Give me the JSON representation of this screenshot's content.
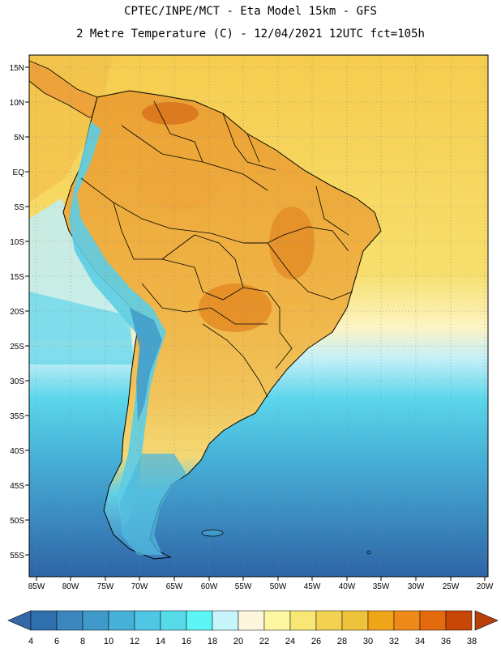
{
  "header": {
    "line1": "CPTEC/INPE/MCT  -   Eta Model 15km - GFS",
    "line2": "2 Metre Temperature (C) - 12/04/2021 12UTC fct=105h"
  },
  "axes": {
    "lat_labels": [
      "15N",
      "10N",
      "5N",
      "EQ",
      "5S",
      "10S",
      "15S",
      "20S",
      "25S",
      "30S",
      "35S",
      "40S",
      "45S",
      "50S",
      "55S"
    ],
    "lon_labels": [
      "85W",
      "80W",
      "75W",
      "70W",
      "65W",
      "60W",
      "55W",
      "50W",
      "45W",
      "40W",
      "35W",
      "30W",
      "25W",
      "20W"
    ]
  },
  "colorbar": {
    "labels": [
      "4",
      "6",
      "8",
      "10",
      "12",
      "14",
      "16",
      "18",
      "20",
      "22",
      "24",
      "26",
      "28",
      "30",
      "32",
      "34",
      "36",
      "38"
    ],
    "colors": [
      "#2f6fae",
      "#3a86bd",
      "#3f99c9",
      "#46b0d9",
      "#4fc6e3",
      "#56dbe9",
      "#5df5f5",
      "#c6f5fc",
      "#fdf6dc",
      "#fdf7a1",
      "#f8e675",
      "#f2d250",
      "#eec23a",
      "#f0a518",
      "#ee8a17",
      "#e36a0d",
      "#c84607"
    ],
    "low_color": "#3468a8",
    "high_color": "#b8400a"
  },
  "legend": {
    "land_warm": "#f0b84a",
    "land_hot": "#e28a22",
    "andes_cold": "#5cc7e0",
    "ocean_north": "#f6d35a",
    "ocean_south": "#2d6fae"
  }
}
